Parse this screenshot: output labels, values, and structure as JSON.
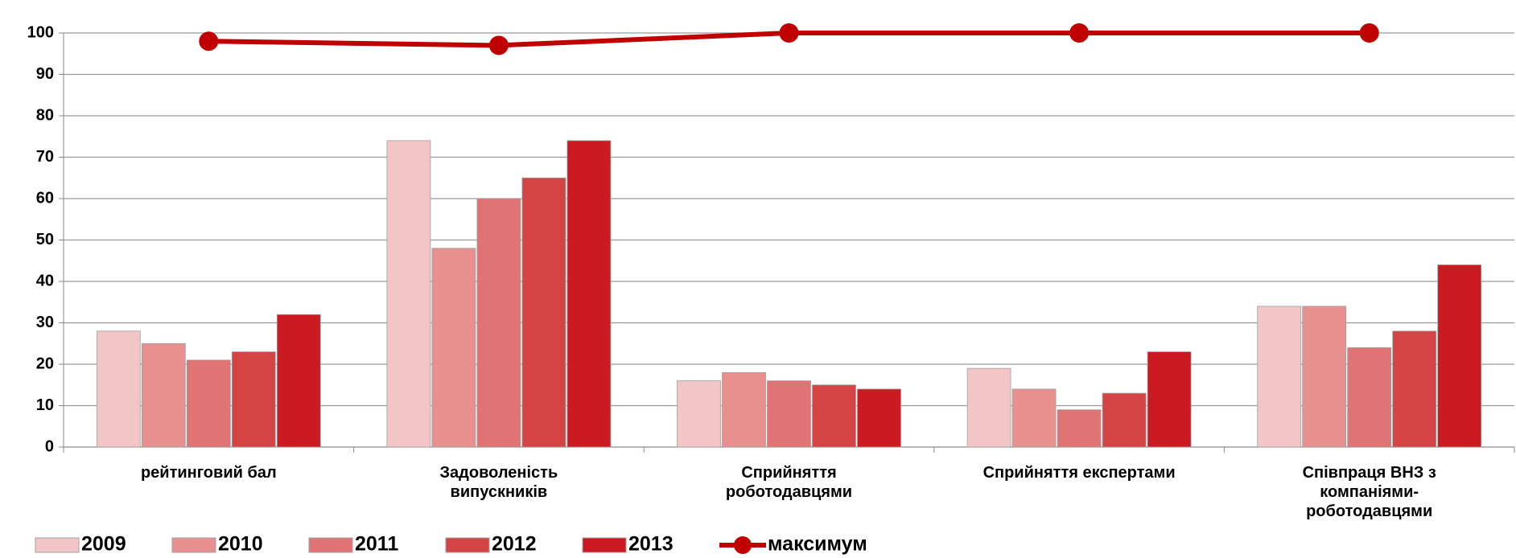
{
  "chart_data": {
    "type": "bar",
    "categories": [
      "рейтинговий бал",
      "Задоволеність випускників",
      "Сприйняття роботодавцями",
      "Сприйняття експертами",
      "Співпраця  ВНЗ з компаніями-роботодавцями"
    ],
    "series": [
      {
        "name": "2009",
        "color": "#f2c6c6",
        "values": [
          28,
          74,
          16,
          19,
          34
        ]
      },
      {
        "name": "2010",
        "color": "#e89090",
        "values": [
          25,
          48,
          18,
          14,
          34
        ]
      },
      {
        "name": "2011",
        "color": "#e07474",
        "values": [
          21,
          60,
          16,
          9,
          24
        ]
      },
      {
        "name": "2012",
        "color": "#d44444",
        "values": [
          23,
          65,
          15,
          13,
          28
        ]
      },
      {
        "name": "2013",
        "color": "#cc1a22",
        "values": [
          32,
          74,
          14,
          23,
          44
        ]
      },
      {
        "name": "максимум",
        "color": "#c00000",
        "type": "line",
        "values": [
          98,
          97,
          100,
          100,
          100
        ]
      }
    ],
    "ylim": [
      0,
      100
    ],
    "yticks": [
      0,
      10,
      20,
      30,
      40,
      50,
      60,
      70,
      80,
      90,
      100
    ],
    "grid": true,
    "legend": "bottom"
  }
}
